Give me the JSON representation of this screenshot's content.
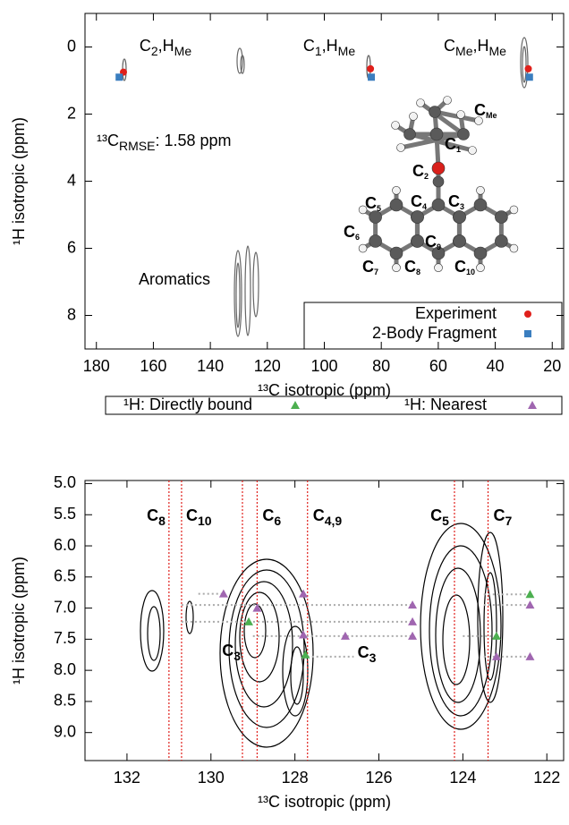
{
  "chart_data": [
    {
      "type": "scatter",
      "x_label": "¹³C isotropic (ppm)",
      "y_label": "¹H isotropic (ppm)",
      "xlim": [
        184,
        16
      ],
      "ylim": [
        -1,
        9
      ],
      "xticks": [
        180,
        160,
        140,
        120,
        100,
        80,
        60,
        40,
        20
      ],
      "yticks": [
        0,
        2,
        4,
        6,
        8
      ],
      "series": [
        {
          "name": "Experiment",
          "color": "#e0201b",
          "marker": "circle",
          "x": [
            170.5,
            83.8,
            28.4
          ],
          "values": [
            0.75,
            0.65,
            0.65
          ]
        },
        {
          "name": "2-Body Fragment",
          "color": "#3b7ebf",
          "marker": "square",
          "x": [
            172,
            83.5,
            28
          ],
          "values": [
            0.9,
            0.9,
            0.9
          ]
        }
      ],
      "annotations": [
        {
          "color": "#4a8fc4",
          "parts": [
            {
              "text": "C"
            },
            {
              "sub": "2"
            },
            {
              "text": ",H"
            },
            {
              "sub": "Me"
            }
          ]
        },
        {
          "color": "#4a8fc4",
          "parts": [
            {
              "text": "C"
            },
            {
              "sub": "1"
            },
            {
              "text": ",H"
            },
            {
              "sub": "Me"
            }
          ]
        },
        {
          "color": "#4a8fc4",
          "parts": [
            {
              "text": "C"
            },
            {
              "sub": "Me"
            },
            {
              "text": ",H"
            },
            {
              "sub": "Me"
            }
          ]
        },
        {
          "color": "#000000",
          "parts": [
            {
              "text": "¹³C"
            },
            {
              "sub": "RMSE"
            },
            {
              "text": ": 1.58 ppm"
            }
          ]
        },
        {
          "color": "#4a8fc4",
          "parts": [
            {
              "text": "Aromatics"
            }
          ]
        }
      ],
      "inset_labels": [
        [
          {
            "text": "C"
          },
          {
            "sub": "Me"
          }
        ],
        [
          {
            "text": "C"
          },
          {
            "sub": "1"
          }
        ],
        [
          {
            "text": "C"
          },
          {
            "sub": "2"
          }
        ],
        [
          {
            "text": "C"
          },
          {
            "sub": "3"
          }
        ],
        [
          {
            "text": "C"
          },
          {
            "sub": "4"
          }
        ],
        [
          {
            "text": "C"
          },
          {
            "sub": "5"
          }
        ],
        [
          {
            "text": "C"
          },
          {
            "sub": "6"
          }
        ],
        [
          {
            "text": "C"
          },
          {
            "sub": "7"
          }
        ],
        [
          {
            "text": "C"
          },
          {
            "sub": "8"
          }
        ],
        [
          {
            "text": "C"
          },
          {
            "sub": "9"
          }
        ],
        [
          {
            "text": "C"
          },
          {
            "sub": "10"
          }
        ]
      ]
    },
    {
      "type": "scatter",
      "x_label": "¹³C isotropic (ppm)",
      "y_label": "¹H isotropic (ppm)",
      "xlim": [
        133,
        121.6
      ],
      "ylim": [
        4.95,
        9.45
      ],
      "xticks": [
        132,
        130,
        128,
        126,
        124,
        122
      ],
      "yticks": [
        {
          "value": 5,
          "label": "5.0"
        },
        5.5,
        {
          "value": 6,
          "label": "6.0"
        },
        6.5,
        {
          "value": 7,
          "label": "7.0"
        },
        7.5,
        {
          "value": 8,
          "label": "8.0"
        },
        8.5,
        {
          "value": 9,
          "label": "9.0"
        }
      ],
      "series": [
        {
          "name": "¹H: Directly bound",
          "color": "#4caf50",
          "marker": "triangle",
          "x": [
            129.1,
            127.75,
            123.2,
            122.4
          ],
          "values": [
            7.22,
            7.75,
            7.45,
            6.78
          ]
        },
        {
          "name": "¹H: Nearest",
          "color": "#a066b0",
          "marker": "triangle",
          "x": [
            129.7,
            128.9,
            127.8,
            127.8,
            126.8,
            125.2,
            125.2,
            125.2,
            123.2,
            122.4,
            122.4
          ],
          "values": [
            6.77,
            7.0,
            6.77,
            7.43,
            7.45,
            6.95,
            7.22,
            7.45,
            7.78,
            6.95,
            7.78
          ]
        }
      ],
      "assignments": [
        {
          "x": 131.0,
          "label": [
            {
              "text": "C"
            },
            {
              "sub": "8"
            }
          ]
        },
        {
          "x": 130.7,
          "label": [
            {
              "text": "C"
            },
            {
              "sub": "10"
            }
          ]
        },
        {
          "x": 129.25,
          "label": [
            {
              "text": "C"
            },
            {
              "sub": "3"
            }
          ]
        },
        {
          "x": 128.9,
          "label": [
            {
              "text": "C"
            },
            {
              "sub": "6"
            }
          ]
        },
        {
          "x": 127.7,
          "label": [
            {
              "text": "C"
            },
            {
              "sub": "4,9"
            }
          ]
        },
        {
          "x": 124.2,
          "label": [
            {
              "text": "C"
            },
            {
              "sub": "5"
            }
          ]
        },
        {
          "x": 123.4,
          "label": [
            {
              "text": "C"
            },
            {
              "sub": "7"
            }
          ]
        }
      ],
      "connectors": [
        {
          "x": [
            130.3,
            129.7
          ],
          "y": 6.77
        },
        {
          "x": [
            130.7,
            125.2
          ],
          "y": 6.95
        },
        {
          "x": [
            130.7,
            125.2
          ],
          "y": 7.22
        },
        {
          "x": [
            129.0,
            125.2
          ],
          "y": 7.45
        },
        {
          "x": [
            124.0,
            123.2
          ],
          "y": 7.45
        },
        {
          "x": [
            127.7,
            126.6
          ],
          "y": 7.78
        },
        {
          "x": [
            123.5,
            122.4
          ],
          "y": 7.78
        },
        {
          "x": [
            123.5,
            122.4
          ],
          "y": 6.78
        },
        {
          "x": [
            123.5,
            122.4
          ],
          "y": 6.95
        }
      ],
      "annotations": [
        {
          "color": "#a066b0",
          "parts": [
            {
              "text": "C"
            },
            {
              "sub": "3"
            }
          ]
        }
      ]
    }
  ]
}
